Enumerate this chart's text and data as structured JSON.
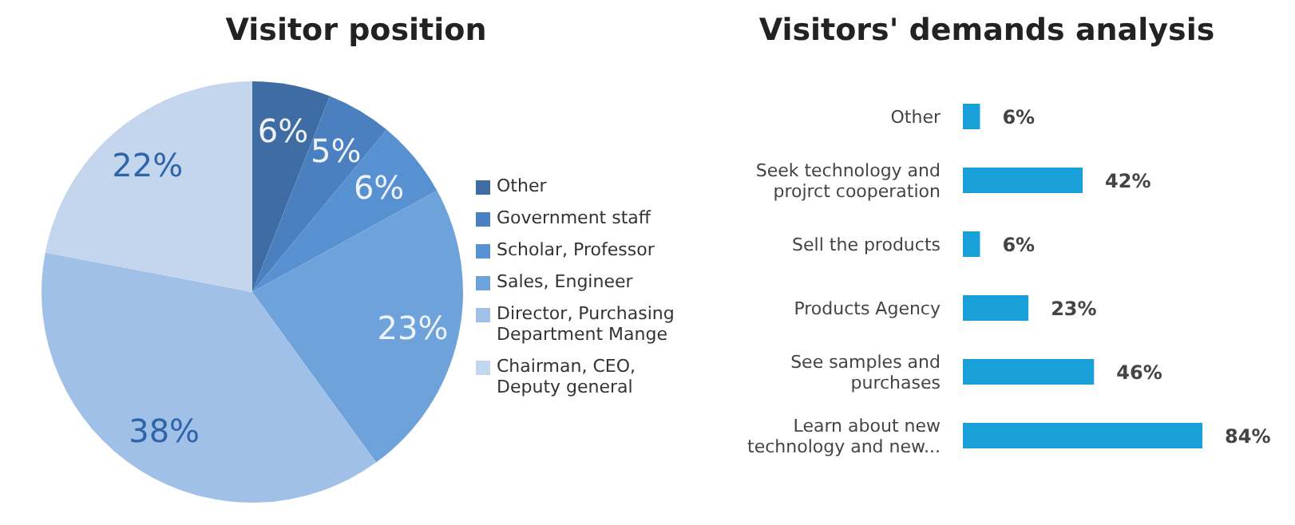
{
  "chart_data": [
    {
      "type": "pie",
      "title": "Visitor position",
      "categories": [
        "Other",
        "Government staff",
        "Scholar, Professor",
        "Sales, Engineer",
        "Director, Purchasing Department Mange",
        "Chairman, CEO, Deputy general"
      ],
      "values": [
        6,
        5,
        6,
        23,
        38,
        22
      ],
      "value_labels": [
        "6%",
        "5%",
        "6%",
        "23%",
        "38%",
        "22%"
      ],
      "colors": [
        "#3f6da3",
        "#4a80c0",
        "#5891d2",
        "#6ea2da",
        "#a1c0e7",
        "#c4d6ee"
      ],
      "legend": "right"
    },
    {
      "type": "bar",
      "orientation": "horizontal",
      "title": "Visitors' demands analysis",
      "categories": [
        "Other",
        "Seek technology and projrct cooperation",
        "Sell the products",
        "Products Agency",
        "See samples and purchases",
        "Learn about new technology and new..."
      ],
      "values": [
        6,
        42,
        6,
        23,
        46,
        84
      ],
      "value_labels": [
        "6%",
        "42%",
        "6%",
        "23%",
        "46%",
        "84%"
      ],
      "color": "#1aa0d8"
    }
  ]
}
